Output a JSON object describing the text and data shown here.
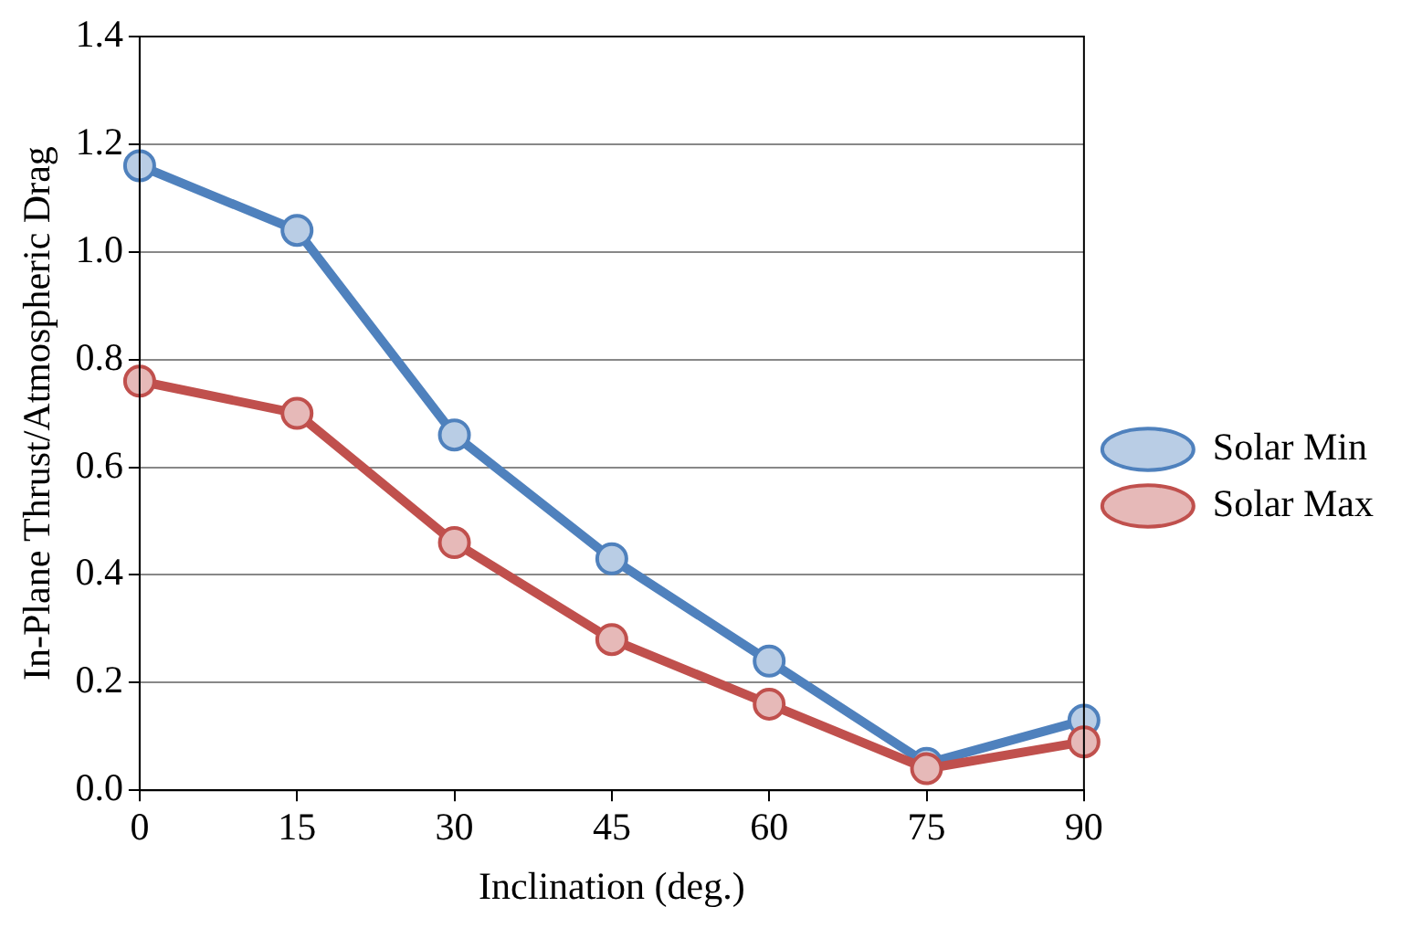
{
  "chart_data": {
    "type": "line",
    "xlabel": "Inclination (deg.)",
    "ylabel": "In-Plane Thrust/Atmospheric Drag",
    "x": [
      0,
      15,
      30,
      45,
      60,
      75,
      90
    ],
    "series": [
      {
        "name": "Solar Min",
        "color": "#4f81bd",
        "values": [
          1.16,
          1.04,
          0.66,
          0.43,
          0.24,
          0.05,
          0.13
        ]
      },
      {
        "name": "Solar Max",
        "color": "#c0504d",
        "values": [
          0.76,
          0.7,
          0.46,
          0.28,
          0.16,
          0.04,
          0.09
        ]
      }
    ],
    "xlim": [
      0,
      90
    ],
    "xticks": [
      0,
      15,
      30,
      45,
      60,
      75,
      90
    ],
    "ylim": [
      0,
      1.4
    ],
    "yticks": [
      {
        "value": 0,
        "label": "0.0"
      },
      {
        "value": 0.2,
        "label": "0.2"
      },
      {
        "value": 0.4,
        "label": "0.4"
      },
      {
        "value": 0.6,
        "label": "0.6"
      },
      {
        "value": 0.8,
        "label": "0.8"
      },
      {
        "value": 1,
        "label": "1.0"
      },
      {
        "value": 1.2,
        "label": "1.2"
      },
      {
        "value": 1.4,
        "label": "1.4"
      }
    ],
    "grid": "y",
    "legend": "right",
    "marker": "circle",
    "line_style": "solid"
  }
}
